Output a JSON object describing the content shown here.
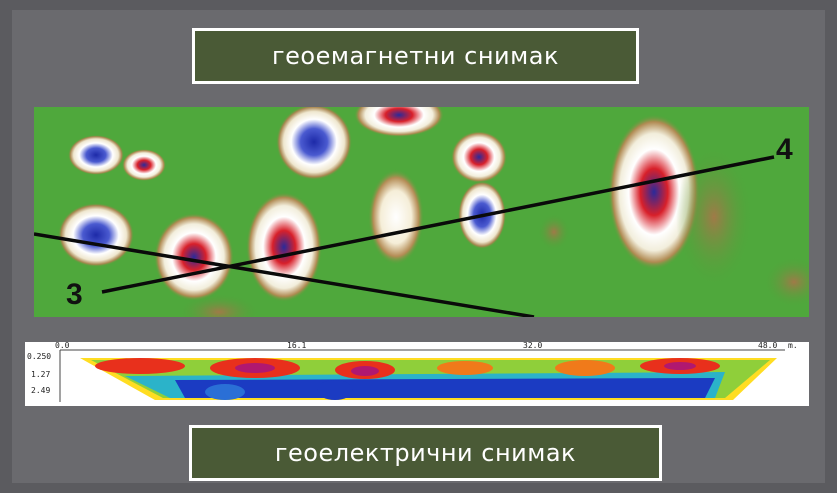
{
  "titles": {
    "top": "геоемагнетни снимак",
    "bottom": "геоелектрични снимак"
  },
  "magnetic_map": {
    "line_labels": [
      "3",
      "4"
    ]
  },
  "electrical_profile": {
    "x_ticks": [
      "0.0",
      "16.1",
      "32.0",
      "48.0"
    ],
    "x_unit": "m.",
    "depth_ticks": [
      "0.250",
      "1.27",
      "2.49"
    ]
  }
}
